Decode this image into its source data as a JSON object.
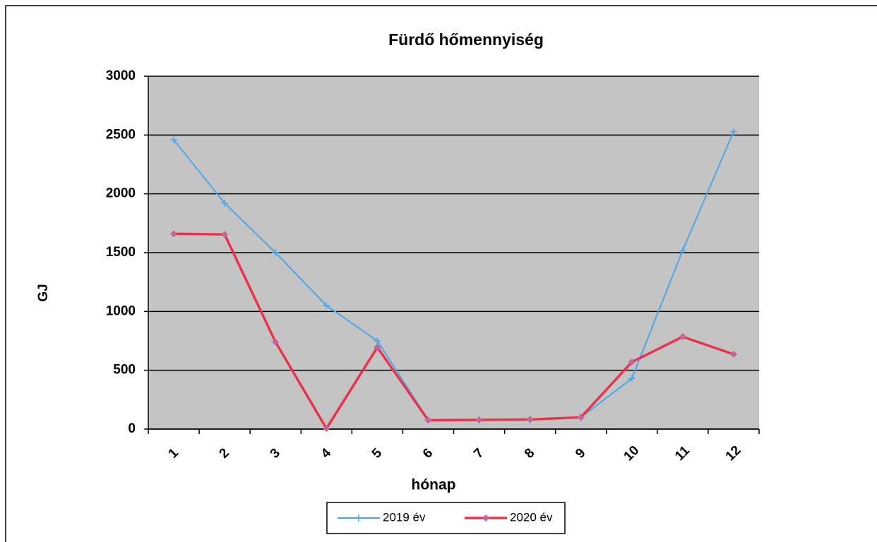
{
  "chart_data": {
    "type": "line",
    "title": "Fürdő hőmennyiség",
    "x_label": "hónap",
    "y_label": "GJ",
    "categories": [
      "1",
      "2",
      "3",
      "4",
      "5",
      "6",
      "7",
      "8",
      "9",
      "10",
      "11",
      "12"
    ],
    "series": [
      {
        "name": "2019 év",
        "color": "#4da6e8",
        "values": [
          2460,
          1920,
          1500,
          1050,
          750,
          78,
          80,
          80,
          100,
          430,
          1520,
          2530
        ]
      },
      {
        "name": "2020 év",
        "color": "#e8334a",
        "values": [
          1660,
          1655,
          740,
          5,
          695,
          75,
          78,
          82,
          100,
          570,
          785,
          636
        ]
      }
    ],
    "ylim": [
      0,
      3000
    ],
    "yticks": [
      0,
      500,
      1000,
      1500,
      2000,
      2500,
      3000
    ],
    "grid": true,
    "legend": "bottom"
  }
}
